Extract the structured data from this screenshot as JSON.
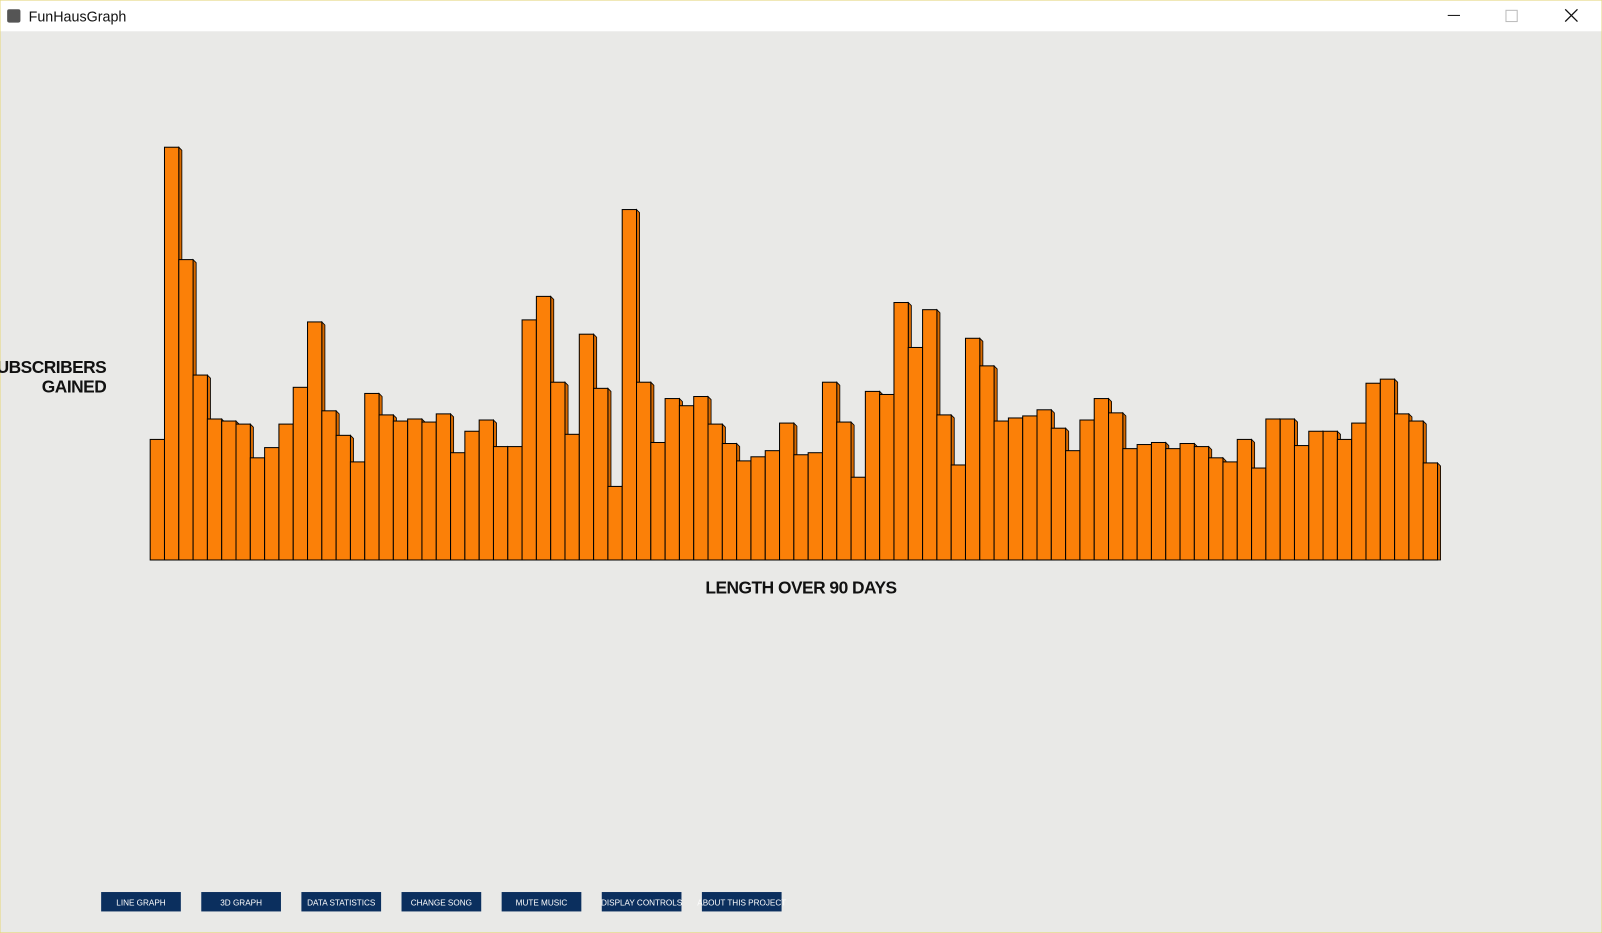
{
  "window": {
    "title": "FunHausGraph"
  },
  "chart_data": {
    "type": "bar",
    "ylabel": [
      "SUBSCRIBERS",
      "GAINED"
    ],
    "xlabel": "LENGTH OVER 90 DAYS",
    "color": "#fb8008",
    "values": [
      118,
      404,
      294,
      181,
      138,
      136,
      133,
      100,
      110,
      133,
      169,
      233,
      146,
      122,
      96,
      163,
      142,
      136,
      138,
      135,
      143,
      105,
      126,
      137,
      111,
      111,
      235,
      258,
      174,
      123,
      221,
      168,
      72,
      343,
      174,
      115,
      158,
      151,
      160,
      133,
      114,
      97,
      101,
      107,
      134,
      103,
      105,
      174,
      135,
      81,
      165,
      162,
      252,
      208,
      245,
      142,
      93,
      217,
      190,
      136,
      139,
      141,
      147,
      129,
      107,
      137,
      158,
      144,
      109,
      113,
      115,
      109,
      114,
      111,
      100,
      96,
      118,
      90,
      138,
      138,
      112,
      126,
      126,
      118,
      134,
      173,
      177,
      143,
      136,
      95
    ]
  },
  "buttons": [
    "LINE GRAPH",
    "3D GRAPH",
    "DATA STATISTICS",
    "CHANGE SONG",
    "MUTE MUSIC",
    "DISPLAY CONTROLS",
    "ABOUT THIS PROJECT"
  ]
}
